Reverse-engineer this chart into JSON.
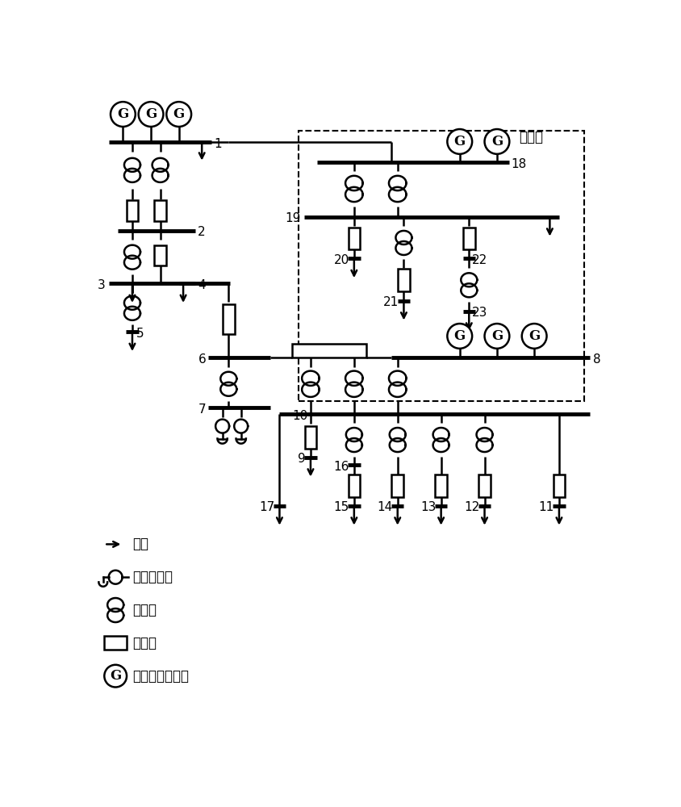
{
  "bg_color": "#ffffff",
  "lc": "#000000",
  "lw": 1.8,
  "bw": 3.5,
  "legend_items": [
    {
      "text": "负荷"
    },
    {
      "text": "无功补偿器"
    },
    {
      "text": "变压器"
    },
    {
      "text": "输电线"
    },
    {
      "text": "燃气轮机发电机"
    }
  ],
  "label_cong": "从微网"
}
